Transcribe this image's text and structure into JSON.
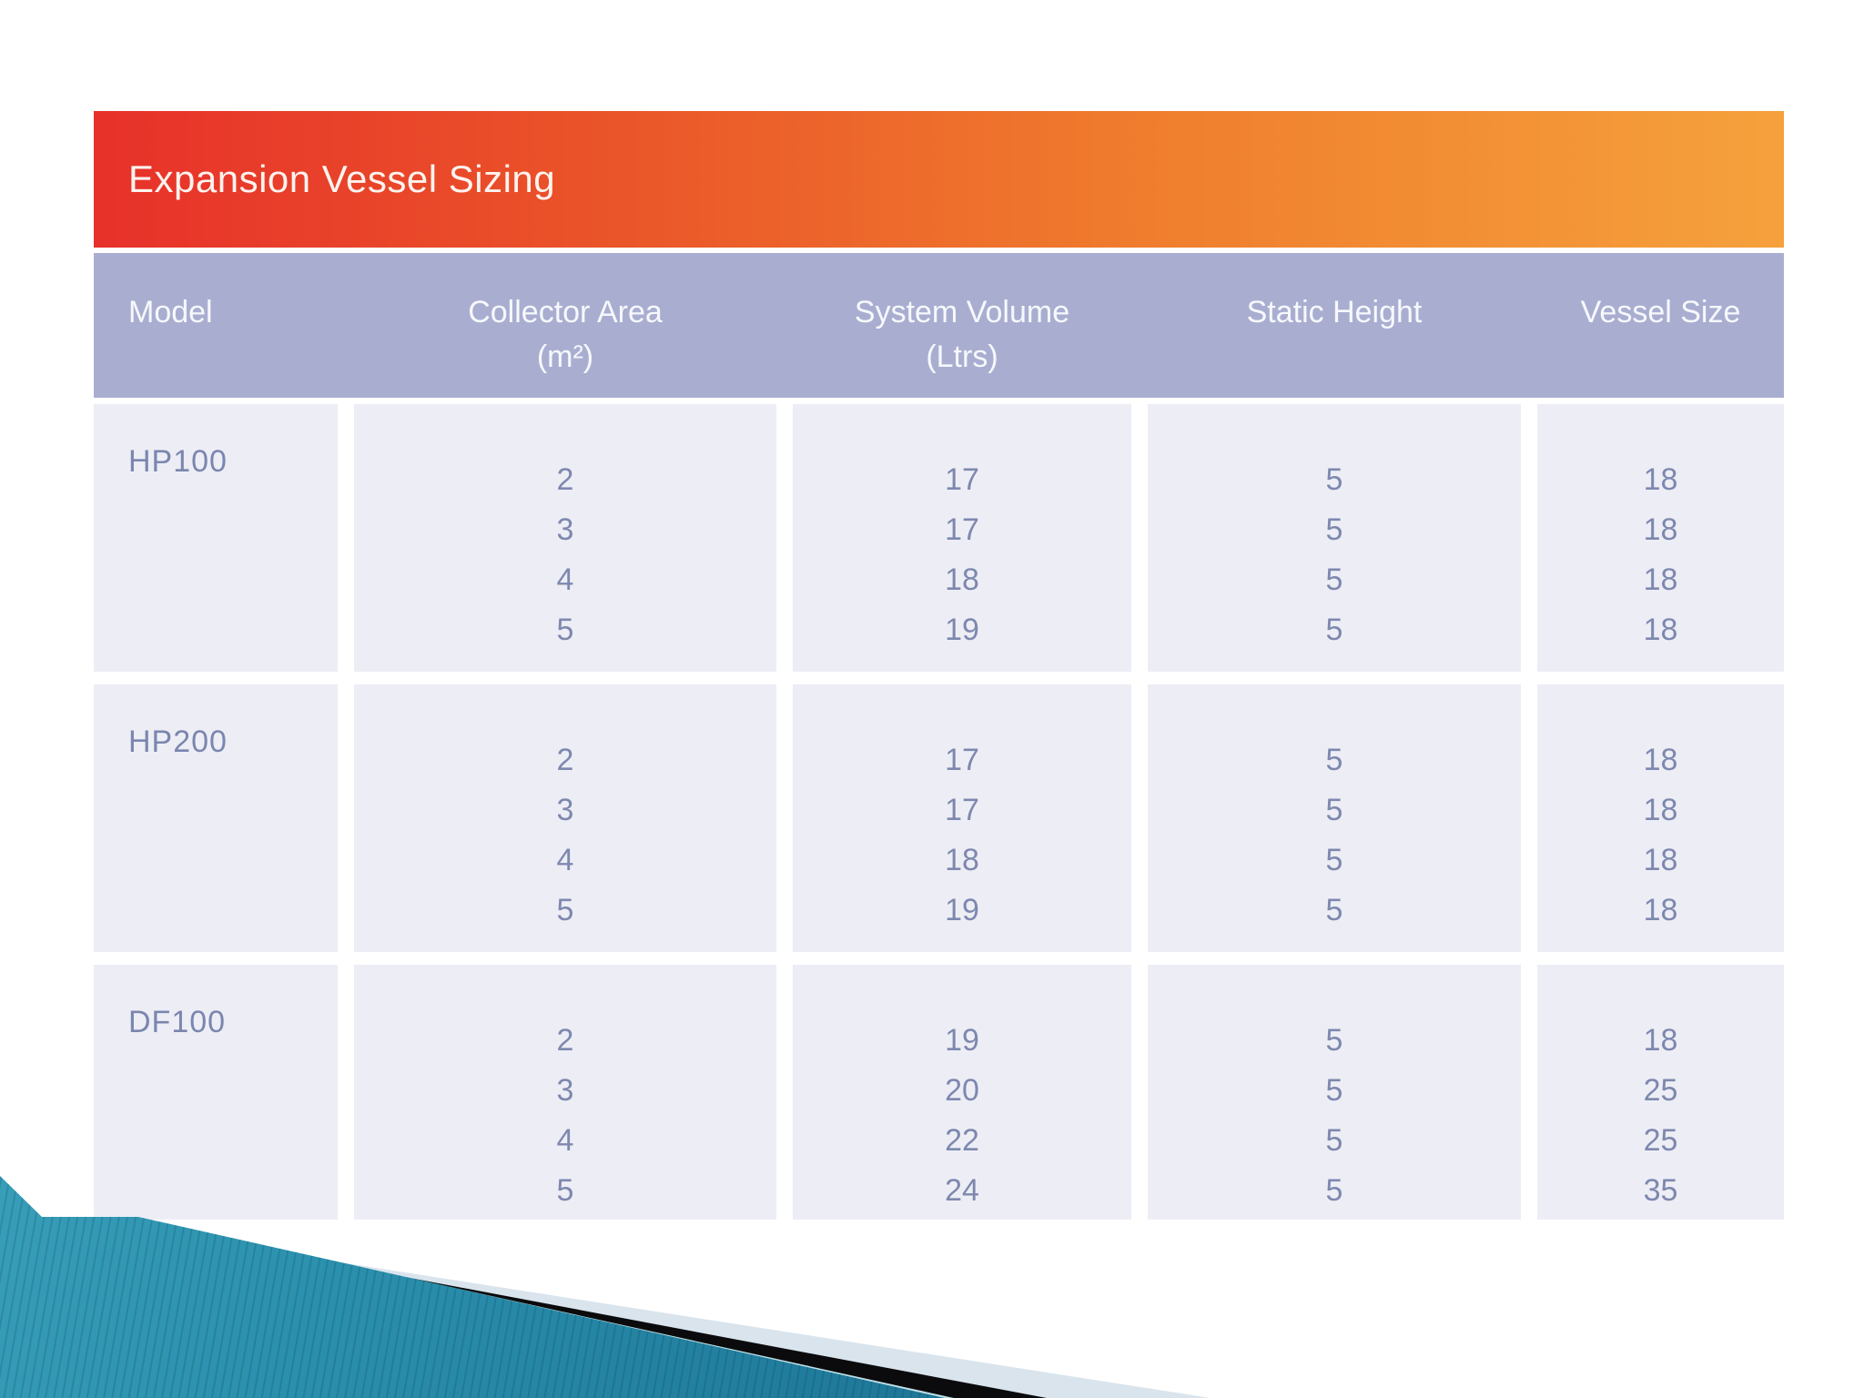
{
  "slide": {
    "title": "Expansion Vessel Sizing",
    "table": {
      "columns": [
        {
          "label": "Model",
          "sub": ""
        },
        {
          "label": "Collector Area",
          "sub": "(m²)"
        },
        {
          "label": "System Volume",
          "sub": "(Ltrs)"
        },
        {
          "label": "Static Height",
          "sub": ""
        },
        {
          "label": "Vessel Size",
          "sub": ""
        }
      ],
      "groups": [
        {
          "model": "HP100",
          "collector_area": [
            "2",
            "3",
            "4",
            "5"
          ],
          "system_volume": [
            "17",
            "17",
            "18",
            "19"
          ],
          "static_height": [
            "5",
            "5",
            "5",
            "5"
          ],
          "vessel_size": [
            "18",
            "18",
            "18",
            "18"
          ]
        },
        {
          "model": "HP200",
          "collector_area": [
            "2",
            "3",
            "4",
            "5"
          ],
          "system_volume": [
            "17",
            "17",
            "18",
            "19"
          ],
          "static_height": [
            "5",
            "5",
            "5",
            "5"
          ],
          "vessel_size": [
            "18",
            "18",
            "18",
            "18"
          ]
        },
        {
          "model": "DF100",
          "collector_area": [
            "2",
            "3",
            "4",
            "5"
          ],
          "system_volume": [
            "19",
            "20",
            "22",
            "24"
          ],
          "static_height": [
            "5",
            "5",
            "5",
            "5"
          ],
          "vessel_size": [
            "18",
            "25",
            "25",
            "35"
          ]
        }
      ]
    },
    "colors": {
      "title_bar_gradient_left": "#e7312a",
      "title_bar_gradient_right": "#f5a13c",
      "header_band": "#a9aed1",
      "cell_background": "#edeef5",
      "data_text": "#7e88af",
      "title_text": "#ffffff",
      "deco_teal": "#2b91ae",
      "deco_black": "#0b0b0d",
      "deco_pale": "#d9e4ed"
    }
  }
}
